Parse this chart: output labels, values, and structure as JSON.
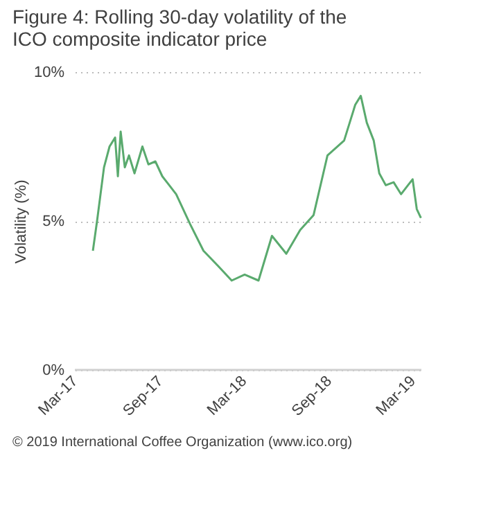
{
  "chart_data": {
    "type": "line",
    "title": "Figure 4:   Rolling 30-day volatility of the ICO composite indicator price",
    "ylabel": "Volatility (%)",
    "annotations": [
      "© 2019 International Coffee Organization (www.ico.org)"
    ],
    "x": [
      "2017-04-09",
      "2017-04-18",
      "2017-05-03",
      "2017-05-15",
      "2017-05-27",
      "2017-06-02",
      "2017-06-08",
      "2017-06-17",
      "2017-06-26",
      "2017-07-08",
      "2017-07-25",
      "2017-08-07",
      "2017-08-22",
      "2017-09-06",
      "2017-09-21",
      "2017-10-06",
      "2017-11-05",
      "2017-12-04",
      "2018-01-04",
      "2018-02-03",
      "2018-03-03",
      "2018-04-02",
      "2018-05-01",
      "2018-06-01",
      "2018-07-01",
      "2018-07-30",
      "2018-08-29",
      "2018-10-04",
      "2018-10-28",
      "2018-11-09",
      "2018-11-22",
      "2018-12-07",
      "2018-12-19",
      "2019-01-02",
      "2019-01-19",
      "2019-02-04",
      "2019-02-19",
      "2019-03-01",
      "2019-03-10",
      "2019-03-19"
    ],
    "series": [
      {
        "color": "#5aaa6e",
        "values": [
          4.0,
          5.0,
          6.8,
          7.5,
          7.8,
          6.5,
          8.0,
          6.8,
          7.2,
          6.6,
          7.5,
          6.9,
          7.0,
          6.5,
          6.2,
          5.9,
          4.9,
          4.0,
          3.5,
          3.0,
          3.2,
          3.0,
          4.5,
          3.9,
          4.7,
          5.2,
          7.2,
          7.7,
          8.9,
          9.2,
          8.3,
          7.7,
          6.6,
          6.2,
          6.3,
          5.9,
          6.2,
          6.4,
          5.4,
          5.1
        ]
      }
    ],
    "xlim": [
      "2017-03-01",
      "2019-03-20"
    ],
    "xticks": [
      {
        "value": "2017-03-01",
        "label": "Mar-17"
      },
      {
        "value": "2017-09-01",
        "label": "Sep-17"
      },
      {
        "value": "2018-03-01",
        "label": "Mar-18"
      },
      {
        "value": "2018-09-01",
        "label": "Sep-18"
      },
      {
        "value": "2019-03-01",
        "label": "Mar-19"
      }
    ],
    "ylim": [
      0,
      10
    ],
    "yticks": [
      {
        "value": 0,
        "label": "0%"
      },
      {
        "value": 5,
        "label": "5%"
      },
      {
        "value": 10,
        "label": "10%"
      }
    ],
    "grid": "y",
    "marker": "none",
    "line_style": "solid"
  }
}
